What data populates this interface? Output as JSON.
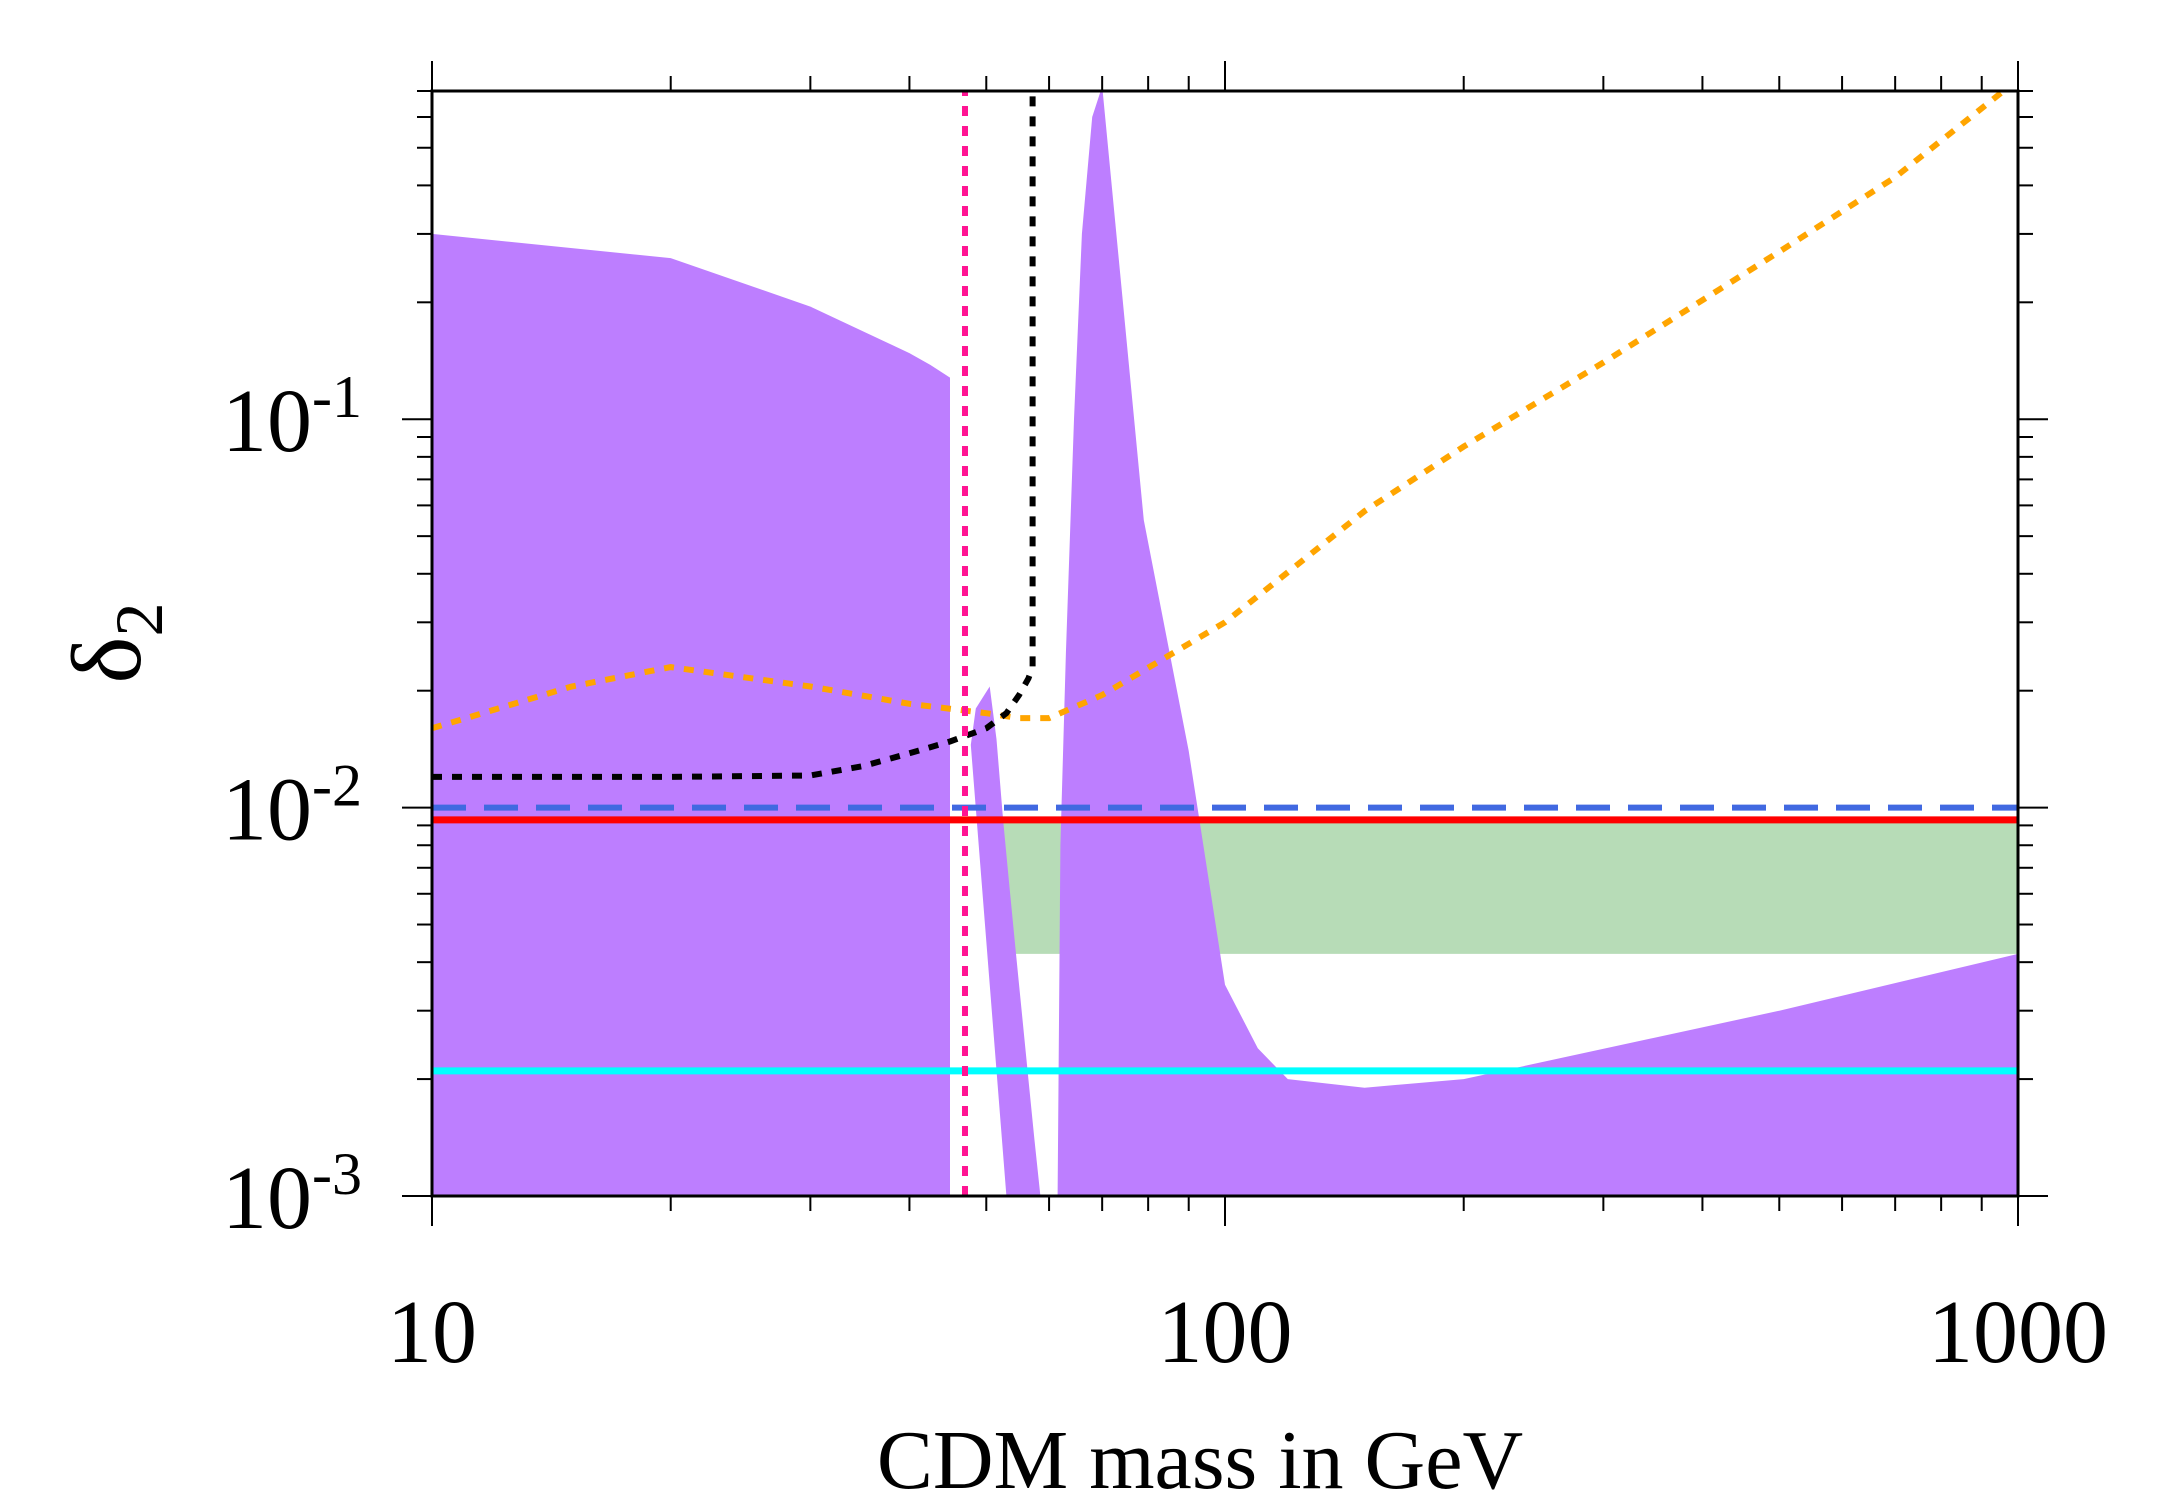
{
  "chart_data": {
    "type": "area",
    "title": "",
    "xlabel": "CDM mass in GeV",
    "ylabel": "δ",
    "ylabel_sub": "2",
    "xscale": "log",
    "yscale": "log",
    "xlim": [
      10,
      1000
    ],
    "ylim": [
      0.001,
      0.7
    ],
    "x_ticks": [
      {
        "value": 10,
        "label": "10"
      },
      {
        "value": 100,
        "label": "100"
      },
      {
        "value": 1000,
        "label": "1000"
      }
    ],
    "y_ticks": [
      {
        "value": 0.1,
        "base": "10",
        "exp": "-1"
      },
      {
        "value": 0.01,
        "base": "10",
        "exp": "-2"
      },
      {
        "value": 0.001,
        "base": "10",
        "exp": "-3"
      }
    ],
    "grid": false,
    "regions": [
      {
        "name": "green-region",
        "color": "#b7dcb7",
        "x": [
          50.5,
          85,
          100,
          200,
          400,
          1000,
          1000,
          50.5
        ],
        "y": [
          0.0093,
          0.0093,
          0.0093,
          0.0093,
          0.0093,
          0.0093,
          0.0042,
          0.0042
        ]
      },
      {
        "name": "purple-region-left",
        "color": "#bd7eff",
        "x": [
          10,
          10,
          20,
          30,
          40,
          42.5,
          45,
          45,
          43.7
        ],
        "y": [
          0.001,
          0.3,
          0.26,
          0.195,
          0.148,
          0.138,
          0.128,
          0.001,
          0.001
        ]
      },
      {
        "name": "purple-region-middle",
        "color": "#bd7eff",
        "x": [
          47.8,
          48.5,
          50.5,
          51.5,
          52.5,
          53.5,
          54.5,
          55.5,
          56.5,
          57.5,
          58.5,
          58.5,
          53
        ],
        "y": [
          0.0145,
          0.018,
          0.0205,
          0.015,
          0.0093,
          0.0062,
          0.0042,
          0.0029,
          0.002,
          0.0014,
          0.001,
          0.001,
          0.001
        ]
      },
      {
        "name": "purple-region-right",
        "color": "#bd7eff",
        "x": [
          61.5,
          62,
          63,
          64.5,
          66,
          68,
          70,
          79,
          90,
          100,
          110,
          120,
          150,
          200,
          500,
          1000,
          1000
        ],
        "y": [
          0.001,
          0.008,
          0.025,
          0.1,
          0.3,
          0.6,
          0.72,
          0.055,
          0.014,
          0.0035,
          0.0024,
          0.002,
          0.0019,
          0.002,
          0.003,
          0.0042,
          0.001
        ]
      }
    ],
    "series": [
      {
        "name": "dashed-blue-line",
        "color": "#4169e1",
        "style": "long-dash",
        "x": [
          10,
          1000
        ],
        "y": [
          0.01,
          0.01
        ]
      },
      {
        "name": "red-line",
        "color": "#ff0000",
        "style": "solid",
        "x": [
          10,
          1000
        ],
        "y": [
          0.0093,
          0.0093
        ]
      },
      {
        "name": "cyan-line",
        "color": "#00ffff",
        "style": "solid",
        "x": [
          10,
          1000
        ],
        "y": [
          0.0021,
          0.0021
        ]
      },
      {
        "name": "orange-dotted-curve",
        "color": "#ffa500",
        "style": "dotted",
        "x": [
          10,
          15,
          20,
          30,
          40,
          50,
          55,
          60,
          70,
          100,
          150,
          200,
          300,
          500,
          700,
          1000
        ],
        "y": [
          0.016,
          0.0205,
          0.023,
          0.0205,
          0.0185,
          0.0175,
          0.017,
          0.017,
          0.0195,
          0.03,
          0.058,
          0.085,
          0.14,
          0.27,
          0.42,
          0.75
        ]
      },
      {
        "name": "black-dotted-curve",
        "color": "#000000",
        "style": "dotted",
        "x": [
          10,
          20,
          30,
          35,
          40,
          45,
          50,
          53,
          55,
          56.5,
          57.2,
          57.2
        ],
        "y": [
          0.012,
          0.012,
          0.0121,
          0.0128,
          0.0138,
          0.0148,
          0.016,
          0.0175,
          0.0195,
          0.0215,
          0.023,
          0.75
        ]
      },
      {
        "name": "pink-dotted-vertical-line",
        "color": "#ff1493",
        "style": "dotted",
        "x": [
          47,
          47
        ],
        "y": [
          0.001,
          0.75
        ]
      }
    ]
  }
}
